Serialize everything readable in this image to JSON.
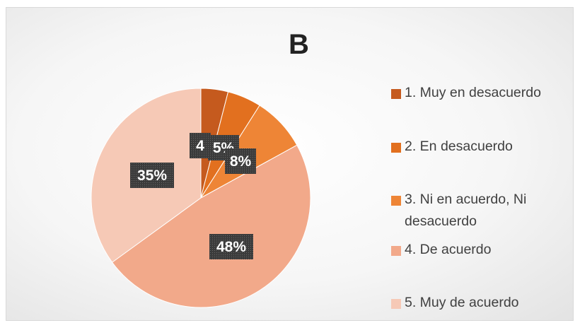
{
  "chart_data": {
    "type": "pie",
    "title": "B",
    "categories": [
      "1. Muy en desacuerdo",
      "2. En desacuerdo",
      "3. Ni en acuerdo, Ni desacuerdo",
      "4. De acuerdo",
      "5. Muy de acuerdo"
    ],
    "values": [
      4,
      5,
      8,
      48,
      35
    ],
    "data_labels": [
      "4",
      "5%",
      "8%",
      "48%",
      "35%"
    ],
    "colors": [
      "#C55A1E",
      "#E2701F",
      "#EE8536",
      "#F2A98A",
      "#F6C9B6"
    ],
    "legend_position": "right"
  }
}
